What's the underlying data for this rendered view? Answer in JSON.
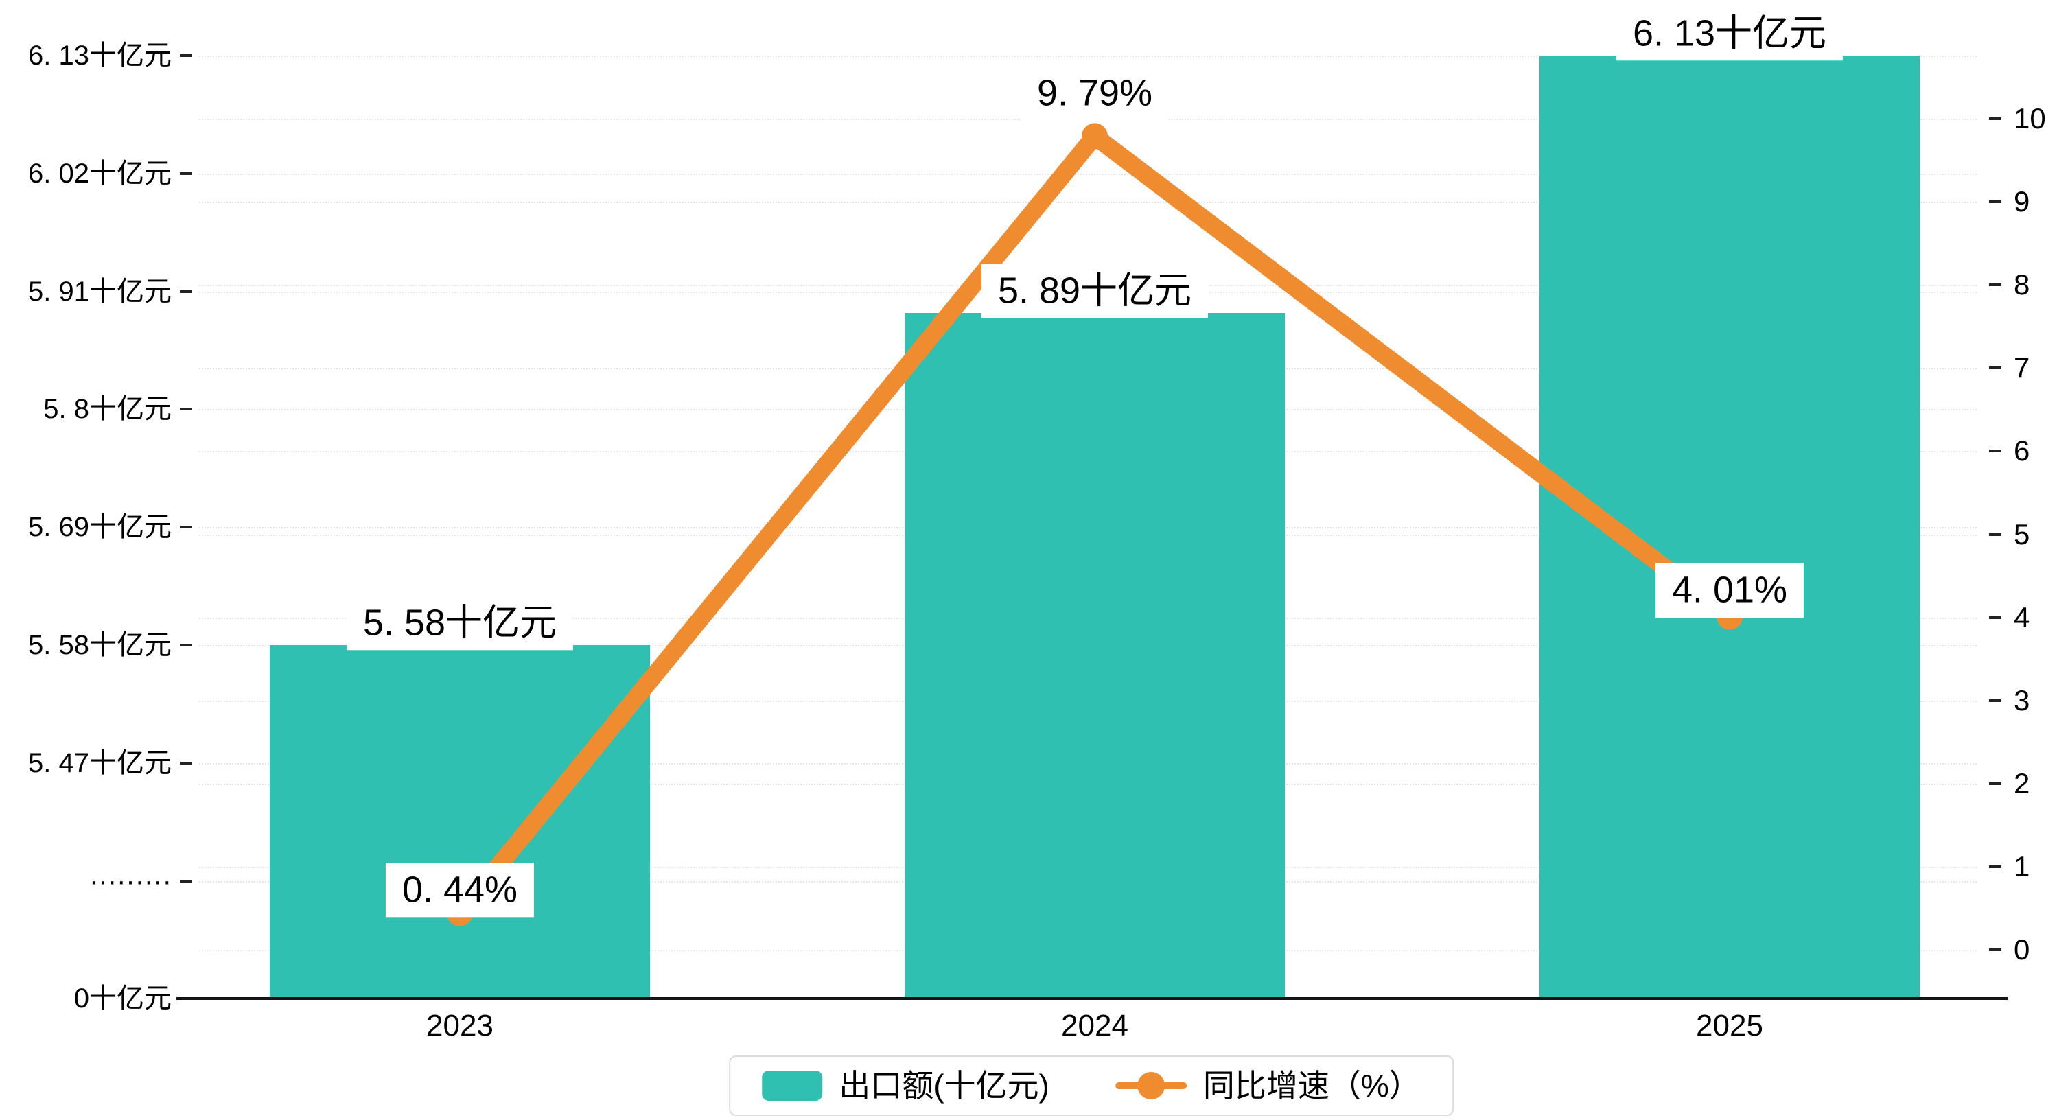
{
  "colors": {
    "bar": "#2fc0b1",
    "line": "#ef8c30",
    "grid": "#e6e6e6",
    "axis": "#141414"
  },
  "chart_data": {
    "type": "bar+line",
    "categories": [
      "2023",
      "2024",
      "2025"
    ],
    "series": [
      {
        "name": "出口额(十亿元)",
        "type": "bar",
        "axis": "left",
        "values": [
          5.58,
          5.89,
          6.13
        ],
        "labels": [
          "5. 58十亿元",
          "5. 89十亿元",
          "6. 13十亿元"
        ]
      },
      {
        "name": "同比增速（%）",
        "type": "line",
        "axis": "right",
        "values": [
          0.44,
          9.79,
          4.01
        ],
        "labels": [
          "0. 44%",
          "9. 79%",
          "4. 01%"
        ]
      }
    ],
    "left_axis": {
      "broken": true,
      "ticks": [
        "6. 13十亿元",
        "6. 02十亿元",
        "5. 91十亿元",
        "5. 8十亿元",
        "5. 69十亿元",
        "5. 58十亿元",
        "5. 47十亿元",
        "·········",
        "0十亿元"
      ]
    },
    "right_axis": {
      "range": [
        0,
        10
      ],
      "ticks": [
        "10",
        "9",
        "8",
        "7",
        "6",
        "5",
        "4",
        "3",
        "2",
        "1",
        "0"
      ]
    },
    "legend": [
      {
        "label": "出口额(十亿元)",
        "marker": "bar-swatch"
      },
      {
        "label": "同比增速（%）",
        "marker": "line-dot"
      }
    ]
  }
}
